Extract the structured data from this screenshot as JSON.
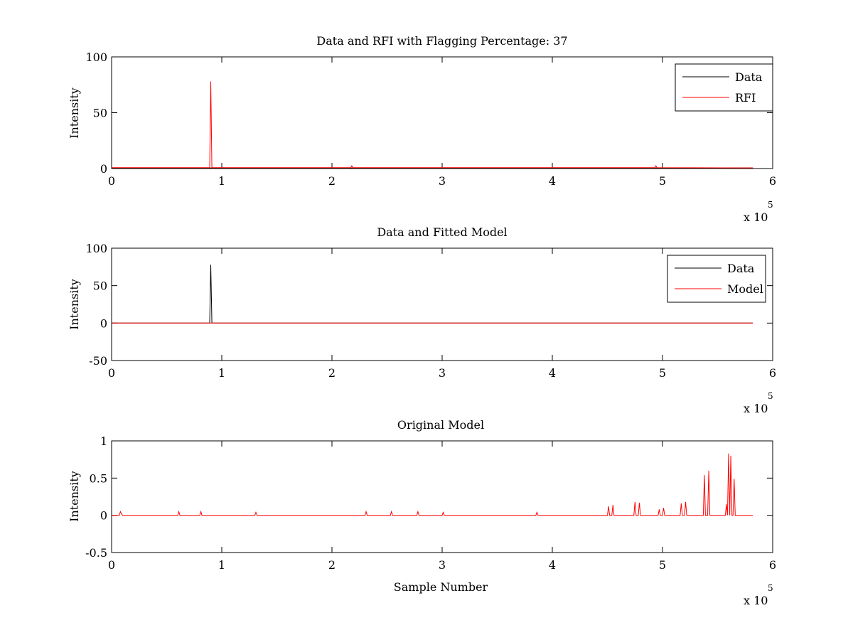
{
  "chart_data": [
    {
      "type": "line",
      "title": "Data and RFI with Flagging Percentage: 37",
      "xlabel": "",
      "ylabel": "Intensity",
      "xlim": [
        0,
        600000
      ],
      "ylim": [
        0,
        100
      ],
      "xticks": [
        "0",
        "1",
        "2",
        "3",
        "4",
        "5",
        "6"
      ],
      "yticks": [
        "0",
        "50",
        "100"
      ],
      "x_multiplier": {
        "base": "x 10",
        "exponent": "5"
      },
      "grid": false,
      "legend_position": "top-right",
      "series": [
        {
          "name": "Data",
          "color": "#000000",
          "x": [
            0,
            582000
          ],
          "y": [
            0.6,
            0.6
          ]
        },
        {
          "name": "RFI",
          "color": "#ff0000",
          "x": [
            0,
            89000,
            90000,
            91000,
            217000,
            218000,
            219000,
            493000,
            494000,
            495000,
            582000
          ],
          "y": [
            0.8,
            0.8,
            78,
            0.8,
            0.8,
            2.5,
            0.8,
            0.8,
            2.5,
            0.8,
            0.6
          ]
        }
      ]
    },
    {
      "type": "line",
      "title": "Data and Fitted Model",
      "xlabel": "",
      "ylabel": "Intensity",
      "xlim": [
        0,
        600000
      ],
      "ylim": [
        -50,
        100
      ],
      "xticks": [
        "0",
        "1",
        "2",
        "3",
        "4",
        "5",
        "6"
      ],
      "yticks": [
        "-50",
        "0",
        "50",
        "100"
      ],
      "x_multiplier": {
        "base": "x 10",
        "exponent": "5"
      },
      "grid": false,
      "legend_position": "top-right",
      "series": [
        {
          "name": "Data",
          "color": "#000000",
          "x": [
            0,
            89000,
            90000,
            91000,
            582000
          ],
          "y": [
            0,
            0,
            78,
            0,
            0
          ]
        },
        {
          "name": "Model",
          "color": "#ff0000",
          "x": [
            0,
            582000
          ],
          "y": [
            0,
            0
          ]
        }
      ]
    },
    {
      "type": "line",
      "title": "Original Model",
      "xlabel": "Sample Number",
      "ylabel": "Intensity",
      "xlim": [
        0,
        600000
      ],
      "ylim": [
        -0.5,
        1
      ],
      "xticks": [
        "0",
        "1",
        "2",
        "3",
        "4",
        "5",
        "6"
      ],
      "yticks": [
        "-0.5",
        "0",
        "0.5",
        "1"
      ],
      "x_multiplier": {
        "base": "x 10",
        "exponent": "5"
      },
      "grid": false,
      "series": [
        {
          "color": "#ff0000",
          "x": [
            0,
            7000,
            8000,
            9000,
            10000,
            60000,
            61000,
            62000,
            80000,
            81000,
            82000,
            130000,
            131000,
            132000,
            230000,
            231000,
            232000,
            253000,
            254000,
            255000,
            277000,
            278000,
            279000,
            300000,
            301000,
            302000,
            385000,
            386000,
            387000,
            450000,
            451000,
            452000,
            454000,
            455000,
            456000,
            474000,
            475000,
            476000,
            478000,
            479000,
            480000,
            496000,
            497000,
            498000,
            500000,
            501000,
            502000,
            516000,
            517000,
            518000,
            520000,
            521000,
            522000,
            537000,
            538000,
            539000,
            541000,
            542000,
            543000,
            557000,
            558000,
            559000,
            560000,
            561000,
            562000,
            563000,
            564000,
            565000,
            566000,
            567000,
            582000
          ],
          "y": [
            0,
            0,
            0.05,
            0.02,
            0,
            0,
            0.05,
            0,
            0,
            0.05,
            0,
            0,
            0.04,
            0,
            0,
            0.05,
            0,
            0,
            0.05,
            0,
            0,
            0.05,
            0,
            0,
            0.04,
            0,
            0,
            0.04,
            0,
            0,
            0.12,
            0,
            0,
            0.14,
            0,
            0,
            0.18,
            0,
            0,
            0.17,
            0,
            0,
            0.08,
            0,
            0,
            0.1,
            0,
            0,
            0.16,
            0,
            0,
            0.18,
            0,
            0,
            0.54,
            0,
            0,
            0.6,
            0,
            0,
            0.15,
            0,
            0.83,
            0,
            0.8,
            0,
            0,
            0.49,
            0,
            0,
            0
          ]
        }
      ]
    }
  ]
}
